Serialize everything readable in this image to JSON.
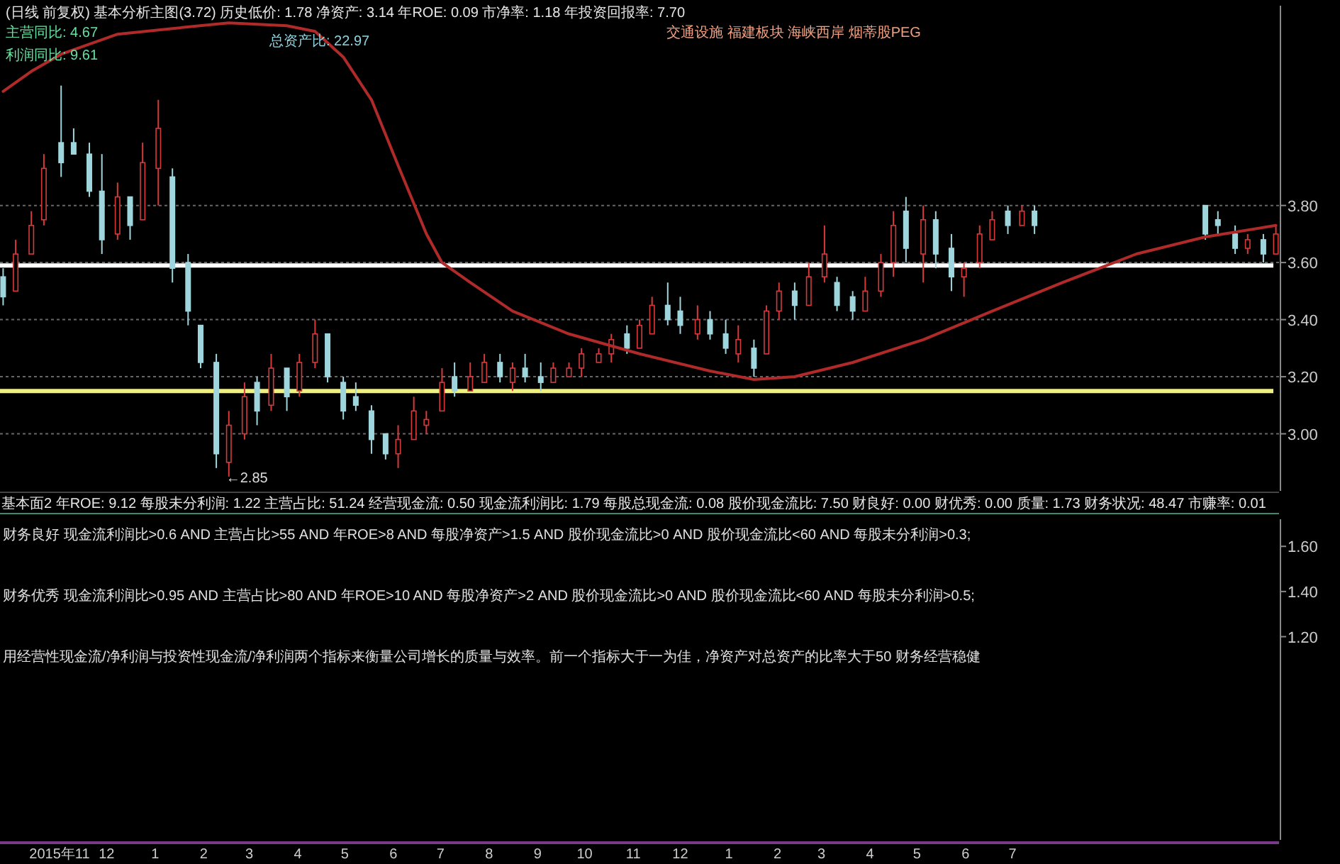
{
  "chart_data": [
    {
      "type": "candlestick",
      "title": "(日线 前复权) 基本分析主图(3.72) 历史低价: 1.78 净资产: 3.14 年ROE: 0.09 市净率: 1.18 年投资回报率: 7.70",
      "annotations": [
        "主营同比: 4.67",
        "总资产比: 22.97",
        "交通设施 福建板块 海峡西岸 烟蒂股PEG",
        "利润同比: 9.61",
        {
          "text": "←2.85",
          "x": "2016-02-17",
          "y": 2.85
        }
      ],
      "x": [
        "2015-09-26",
        "2015-10-04",
        "2015-10-14",
        "2015-10-22",
        "2015-11-02",
        "2015-11-10",
        "2015-11-20",
        "2015-11-28",
        "2015-12-08",
        "2015-12-16",
        "2015-12-24",
        "2016-01-03",
        "2016-01-12",
        "2016-01-22",
        "2016-01-30",
        "2016-02-09",
        "2016-02-17",
        "2016-02-27",
        "2016-03-06",
        "2016-03-15",
        "2016-03-25",
        "2016-04-02",
        "2016-04-12",
        "2016-04-20",
        "2016-04-30",
        "2016-05-08",
        "2016-05-18",
        "2016-05-27",
        "2016-06-04",
        "2016-06-14",
        "2016-06-22",
        "2016-07-02",
        "2016-07-10",
        "2016-07-20",
        "2016-07-29",
        "2016-08-08",
        "2016-08-16",
        "2016-08-24",
        "2016-09-03",
        "2016-09-11",
        "2016-09-21",
        "2016-09-29",
        "2016-10-10",
        "2016-10-18",
        "2016-10-28",
        "2016-11-05",
        "2016-11-13",
        "2016-11-23",
        "2016-12-01",
        "2016-12-12",
        "2016-12-20",
        "2016-12-30",
        "2017-01-07",
        "2017-01-17",
        "2017-01-25",
        "2017-02-02",
        "2017-02-12",
        "2017-02-21",
        "2017-03-03",
        "2017-03-11",
        "2017-03-21",
        "2017-03-29",
        "2017-04-08",
        "2017-04-16",
        "2017-04-24",
        "2017-05-05",
        "2017-05-13",
        "2017-05-23",
        "2017-05-31",
        "2017-06-10",
        "2017-06-18",
        "2017-06-28",
        "2017-07-07",
        "2017-07-15",
        "2017-11-01",
        "2017-11-09",
        "2017-11-20",
        "2017-11-28",
        "2017-12-08",
        "2017-12-16"
      ],
      "ohlc": [
        [
          3.55,
          3.58,
          3.45,
          3.48
        ],
        [
          3.5,
          3.68,
          3.5,
          3.63
        ],
        [
          3.63,
          3.78,
          3.63,
          3.73
        ],
        [
          3.75,
          3.98,
          3.73,
          3.93
        ],
        [
          4.02,
          4.22,
          3.9,
          3.95
        ],
        [
          4.02,
          4.07,
          3.98,
          3.98
        ],
        [
          3.98,
          4.02,
          3.83,
          3.85
        ],
        [
          3.85,
          3.98,
          3.63,
          3.68
        ],
        [
          3.7,
          3.88,
          3.68,
          3.83
        ],
        [
          3.83,
          3.83,
          3.68,
          3.73
        ],
        [
          3.75,
          4.02,
          3.75,
          3.95
        ],
        [
          3.93,
          4.17,
          3.8,
          4.07
        ],
        [
          3.9,
          3.93,
          3.53,
          3.58
        ],
        [
          3.6,
          3.63,
          3.38,
          3.43
        ],
        [
          3.38,
          3.38,
          3.23,
          3.25
        ],
        [
          3.25,
          3.28,
          2.88,
          2.93
        ],
        [
          2.9,
          3.08,
          2.85,
          3.03
        ],
        [
          3.0,
          3.18,
          2.98,
          3.13
        ],
        [
          3.18,
          3.2,
          3.03,
          3.08
        ],
        [
          3.1,
          3.28,
          3.08,
          3.23
        ],
        [
          3.23,
          3.23,
          3.08,
          3.13
        ],
        [
          3.15,
          3.28,
          3.13,
          3.25
        ],
        [
          3.25,
          3.4,
          3.23,
          3.35
        ],
        [
          3.35,
          3.35,
          3.18,
          3.2
        ],
        [
          3.18,
          3.2,
          3.05,
          3.08
        ],
        [
          3.13,
          3.18,
          3.08,
          3.1
        ],
        [
          3.08,
          3.1,
          2.93,
          2.98
        ],
        [
          3.0,
          3.0,
          2.91,
          2.93
        ],
        [
          2.93,
          3.03,
          2.88,
          2.98
        ],
        [
          2.98,
          3.13,
          2.98,
          3.08
        ],
        [
          3.03,
          3.08,
          3.0,
          3.05
        ],
        [
          3.08,
          3.23,
          3.08,
          3.18
        ],
        [
          3.2,
          3.25,
          3.13,
          3.15
        ],
        [
          3.15,
          3.25,
          3.15,
          3.2
        ],
        [
          3.18,
          3.28,
          3.18,
          3.25
        ],
        [
          3.25,
          3.28,
          3.18,
          3.2
        ],
        [
          3.18,
          3.25,
          3.15,
          3.23
        ],
        [
          3.23,
          3.28,
          3.18,
          3.2
        ],
        [
          3.2,
          3.25,
          3.15,
          3.18
        ],
        [
          3.18,
          3.25,
          3.18,
          3.23
        ],
        [
          3.2,
          3.25,
          3.2,
          3.23
        ],
        [
          3.23,
          3.3,
          3.2,
          3.28
        ],
        [
          3.25,
          3.3,
          3.25,
          3.28
        ],
        [
          3.28,
          3.35,
          3.25,
          3.33
        ],
        [
          3.35,
          3.38,
          3.28,
          3.3
        ],
        [
          3.3,
          3.4,
          3.3,
          3.38
        ],
        [
          3.35,
          3.48,
          3.35,
          3.45
        ],
        [
          3.45,
          3.53,
          3.38,
          3.4
        ],
        [
          3.43,
          3.48,
          3.35,
          3.38
        ],
        [
          3.35,
          3.45,
          3.33,
          3.4
        ],
        [
          3.4,
          3.43,
          3.33,
          3.35
        ],
        [
          3.35,
          3.4,
          3.28,
          3.3
        ],
        [
          3.28,
          3.38,
          3.25,
          3.33
        ],
        [
          3.3,
          3.33,
          3.2,
          3.23
        ],
        [
          3.28,
          3.45,
          3.28,
          3.43
        ],
        [
          3.43,
          3.53,
          3.4,
          3.5
        ],
        [
          3.5,
          3.53,
          3.4,
          3.45
        ],
        [
          3.45,
          3.6,
          3.45,
          3.55
        ],
        [
          3.55,
          3.73,
          3.53,
          3.63
        ],
        [
          3.53,
          3.55,
          3.43,
          3.45
        ],
        [
          3.48,
          3.5,
          3.4,
          3.43
        ],
        [
          3.43,
          3.55,
          3.43,
          3.5
        ],
        [
          3.5,
          3.63,
          3.48,
          3.6
        ],
        [
          3.6,
          3.78,
          3.55,
          3.73
        ],
        [
          3.78,
          3.83,
          3.6,
          3.65
        ],
        [
          3.63,
          3.8,
          3.53,
          3.75
        ],
        [
          3.75,
          3.78,
          3.58,
          3.63
        ],
        [
          3.65,
          3.7,
          3.5,
          3.55
        ],
        [
          3.55,
          3.6,
          3.48,
          3.58
        ],
        [
          3.6,
          3.73,
          3.58,
          3.7
        ],
        [
          3.68,
          3.78,
          3.68,
          3.75
        ],
        [
          3.78,
          3.8,
          3.7,
          3.73
        ],
        [
          3.73,
          3.8,
          3.73,
          3.78
        ],
        [
          3.78,
          3.8,
          3.7,
          3.73
        ],
        [
          3.8,
          3.8,
          3.68,
          3.7
        ],
        [
          3.75,
          3.78,
          3.7,
          3.73
        ],
        [
          3.7,
          3.73,
          3.63,
          3.65
        ],
        [
          3.65,
          3.7,
          3.63,
          3.68
        ],
        [
          3.68,
          3.7,
          3.6,
          3.63
        ],
        [
          3.63,
          3.73,
          3.63,
          3.7
        ]
      ],
      "colors": [
        "#9fd6de",
        "#d83a3a",
        "#d83a3a",
        "#d83a3a",
        "#9fd6de",
        "#9fd6de",
        "#9fd6de",
        "#9fd6de",
        "#d83a3a",
        "#9fd6de",
        "#d83a3a",
        "#d83a3a",
        "#9fd6de",
        "#9fd6de",
        "#9fd6de",
        "#9fd6de",
        "#d83a3a",
        "#d83a3a",
        "#9fd6de",
        "#d83a3a",
        "#9fd6de",
        "#d83a3a",
        "#d83a3a",
        "#9fd6de",
        "#9fd6de",
        "#9fd6de",
        "#9fd6de",
        "#9fd6de",
        "#d83a3a",
        "#d83a3a",
        "#d83a3a",
        "#d83a3a",
        "#9fd6de",
        "#d83a3a",
        "#d83a3a",
        "#9fd6de",
        "#d83a3a",
        "#9fd6de",
        "#9fd6de",
        "#d83a3a",
        "#d83a3a",
        "#d83a3a",
        "#d83a3a",
        "#d83a3a",
        "#9fd6de",
        "#d83a3a",
        "#d83a3a",
        "#9fd6de",
        "#9fd6de",
        "#d83a3a",
        "#9fd6de",
        "#9fd6de",
        "#d83a3a",
        "#9fd6de",
        "#d83a3a",
        "#d83a3a",
        "#9fd6de",
        "#d83a3a",
        "#d83a3a",
        "#9fd6de",
        "#9fd6de",
        "#d83a3a",
        "#d83a3a",
        "#d83a3a",
        "#9fd6de",
        "#d83a3a",
        "#9fd6de",
        "#9fd6de",
        "#d83a3a",
        "#d83a3a",
        "#d83a3a",
        "#9fd6de",
        "#d83a3a",
        "#9fd6de",
        "#9fd6de",
        "#9fd6de",
        "#9fd6de",
        "#d83a3a",
        "#9fd6de",
        "#d83a3a"
      ],
      "series": [
        {
          "type": "line",
          "color": "#b02a2a",
          "x": [
            "2015-09-26",
            "2015-10-14",
            "2015-11-02",
            "2015-12-08",
            "2016-01-12",
            "2016-02-17",
            "2016-03-25",
            "2016-04-12",
            "2016-04-30",
            "2016-05-18",
            "2016-06-04",
            "2016-06-22",
            "2016-07-02",
            "2016-07-20",
            "2016-08-16",
            "2016-09-21",
            "2016-11-05",
            "2016-12-20",
            "2017-01-17",
            "2017-02-12",
            "2017-03-21",
            "2017-05-05",
            "2017-06-18",
            "2017-08-02",
            "2017-09-18",
            "2017-11-01",
            "2017-12-16"
          ],
          "values": [
            4.2,
            4.27,
            4.33,
            4.4,
            4.42,
            4.44,
            4.43,
            4.41,
            4.32,
            4.17,
            3.94,
            3.7,
            3.6,
            3.53,
            3.43,
            3.35,
            3.28,
            3.22,
            3.19,
            3.2,
            3.25,
            3.33,
            3.43,
            3.53,
            3.63,
            3.69,
            3.73
          ]
        }
      ],
      "ref_lines": [
        {
          "axis": "y",
          "value": 3.59,
          "color": "#ffffff"
        },
        {
          "axis": "y",
          "value": 3.15,
          "color": "#f0f080"
        }
      ],
      "xlim": [
        "2015-09-24",
        "2017-12-18"
      ],
      "ylim": [
        2.8,
        4.5
      ],
      "yticks": [
        {
          "value": 3.0,
          "label": "3.00"
        },
        {
          "value": 3.2,
          "label": "3.20"
        },
        {
          "value": 3.4,
          "label": "3.40"
        },
        {
          "value": 3.6,
          "label": "3.60"
        },
        {
          "value": 3.8,
          "label": "3.80"
        }
      ],
      "grid": "y",
      "tick_labels": "y"
    },
    {
      "type": "line",
      "title": "基本面2 年ROE: 9.12 每股未分利润: 1.22 主营占比: 51.24 经营现金流: 0.50 现金流利润比: 1.79 每股总现金流: 0.08 股价现金流比: 7.50 财良好: 0.00 财优秀: 0.00 质量: 1.73 财务状况: 48.47 市赚率: 0.01",
      "annotations": [
        "财务良好 现金流利润比>0.6 AND 主营占比>55 AND 年ROE>8 AND 每股净资产>1.5 AND 股价现金流比>0 AND 股价现金流比<60 AND 每股未分利润>0.3;",
        "财务优秀 现金流利润比>0.95 AND 主营占比>80 AND 年ROE>10 AND 每股净资产>2 AND 股价现金流比>0 AND 股价现金流比<60 AND 每股未分利润>0.5;",
        "用经营性现金流/净利润与投资性现金流/净利润两个指标来衡量公司增长的质量与效率。前一个指标大于一为佳，净资产对总资产的比率大于50 财务经营稳健"
      ],
      "xlim": [
        "2015-09-24",
        "2017-12-18"
      ],
      "ylim": [
        0.3,
        1.72
      ],
      "xticks": [
        {
          "value": "2015-11-01",
          "label": "2015年11"
        },
        {
          "value": "2015-12-01",
          "label": "12"
        },
        {
          "value": "2016-01-01",
          "label": "1"
        },
        {
          "value": "2016-02-01",
          "label": "2"
        },
        {
          "value": "2016-03-01",
          "label": "3"
        },
        {
          "value": "2016-04-01",
          "label": "4"
        },
        {
          "value": "2016-05-01",
          "label": "5"
        },
        {
          "value": "2016-06-01",
          "label": "6"
        },
        {
          "value": "2016-07-01",
          "label": "7"
        },
        {
          "value": "2016-08-01",
          "label": "8"
        },
        {
          "value": "2016-09-01",
          "label": "9"
        },
        {
          "value": "2016-10-01",
          "label": "10"
        },
        {
          "value": "2016-11-01",
          "label": "11"
        },
        {
          "value": "2016-12-01",
          "label": "12"
        },
        {
          "value": "2017-01-01",
          "label": "1"
        },
        {
          "value": "2017-02-01",
          "label": "2"
        },
        {
          "value": "2017-03-01",
          "label": "3"
        },
        {
          "value": "2017-04-01",
          "label": "4"
        },
        {
          "value": "2017-05-01",
          "label": "5"
        },
        {
          "value": "2017-06-01",
          "label": "6"
        },
        {
          "value": "2017-07-01",
          "label": "7"
        }
      ],
      "yticks": [
        {
          "value": 1.2,
          "label": "1.20"
        },
        {
          "value": 1.4,
          "label": "1.40"
        },
        {
          "value": 1.6,
          "label": "1.60"
        }
      ]
    }
  ]
}
